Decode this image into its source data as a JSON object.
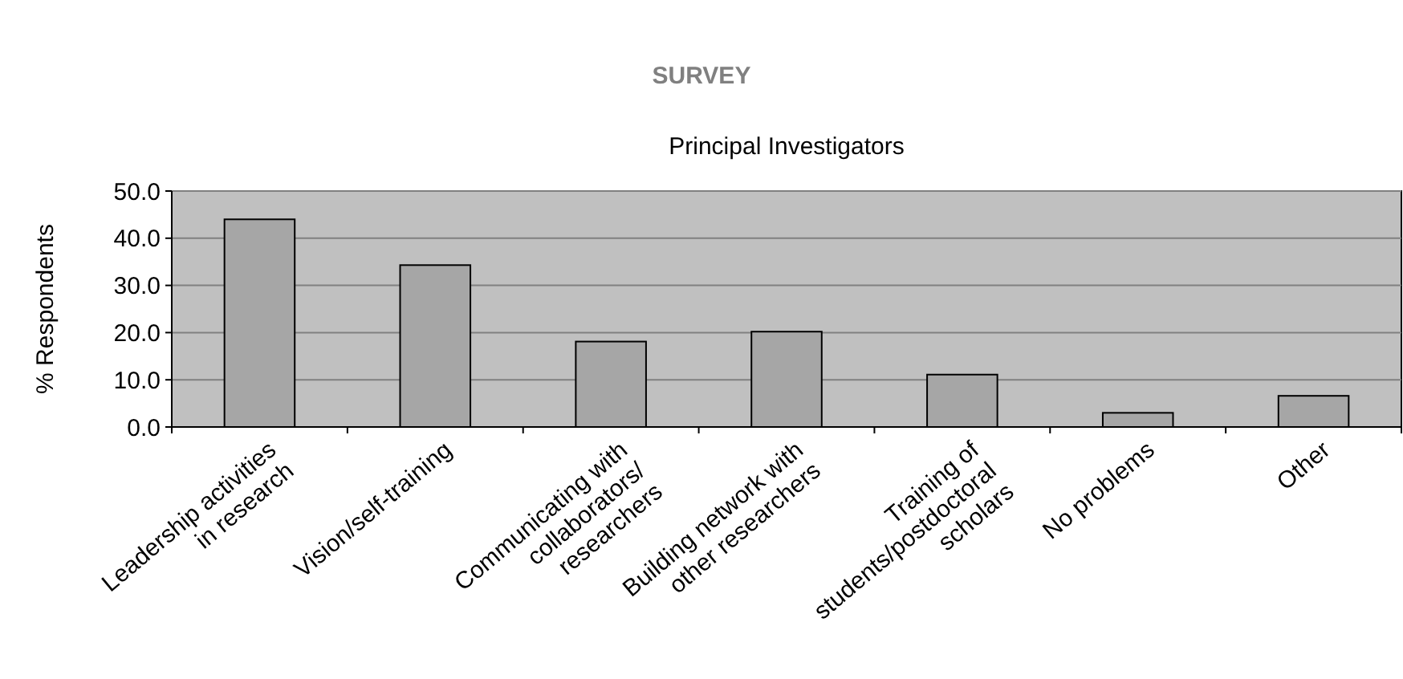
{
  "chart_data": {
    "type": "bar",
    "title": "SURVEY",
    "subtitle": "Principal Investigators",
    "ylabel": "% Respondents",
    "categories": [
      "Leadership activities\nin research",
      "Vision/self-training",
      "Communicating with\ncollaborators/\nresearchers",
      "Building network with\nother researchers",
      "Training of\nstudents/postdoctoral\nscholars",
      "No problems",
      "Other"
    ],
    "values": [
      44.0,
      34.3,
      18.1,
      20.2,
      11.1,
      3.0,
      6.6
    ],
    "color": "#a6a6a6",
    "ylim": [
      0,
      50
    ],
    "yticks": [
      {
        "value": 0,
        "label": "0.0"
      },
      {
        "value": 10,
        "label": "10.0"
      },
      {
        "value": 20,
        "label": "20.0"
      },
      {
        "value": 30,
        "label": "30.0"
      },
      {
        "value": 40,
        "label": "40.0"
      },
      {
        "value": 50,
        "label": "50.0"
      }
    ],
    "grid": "y"
  }
}
